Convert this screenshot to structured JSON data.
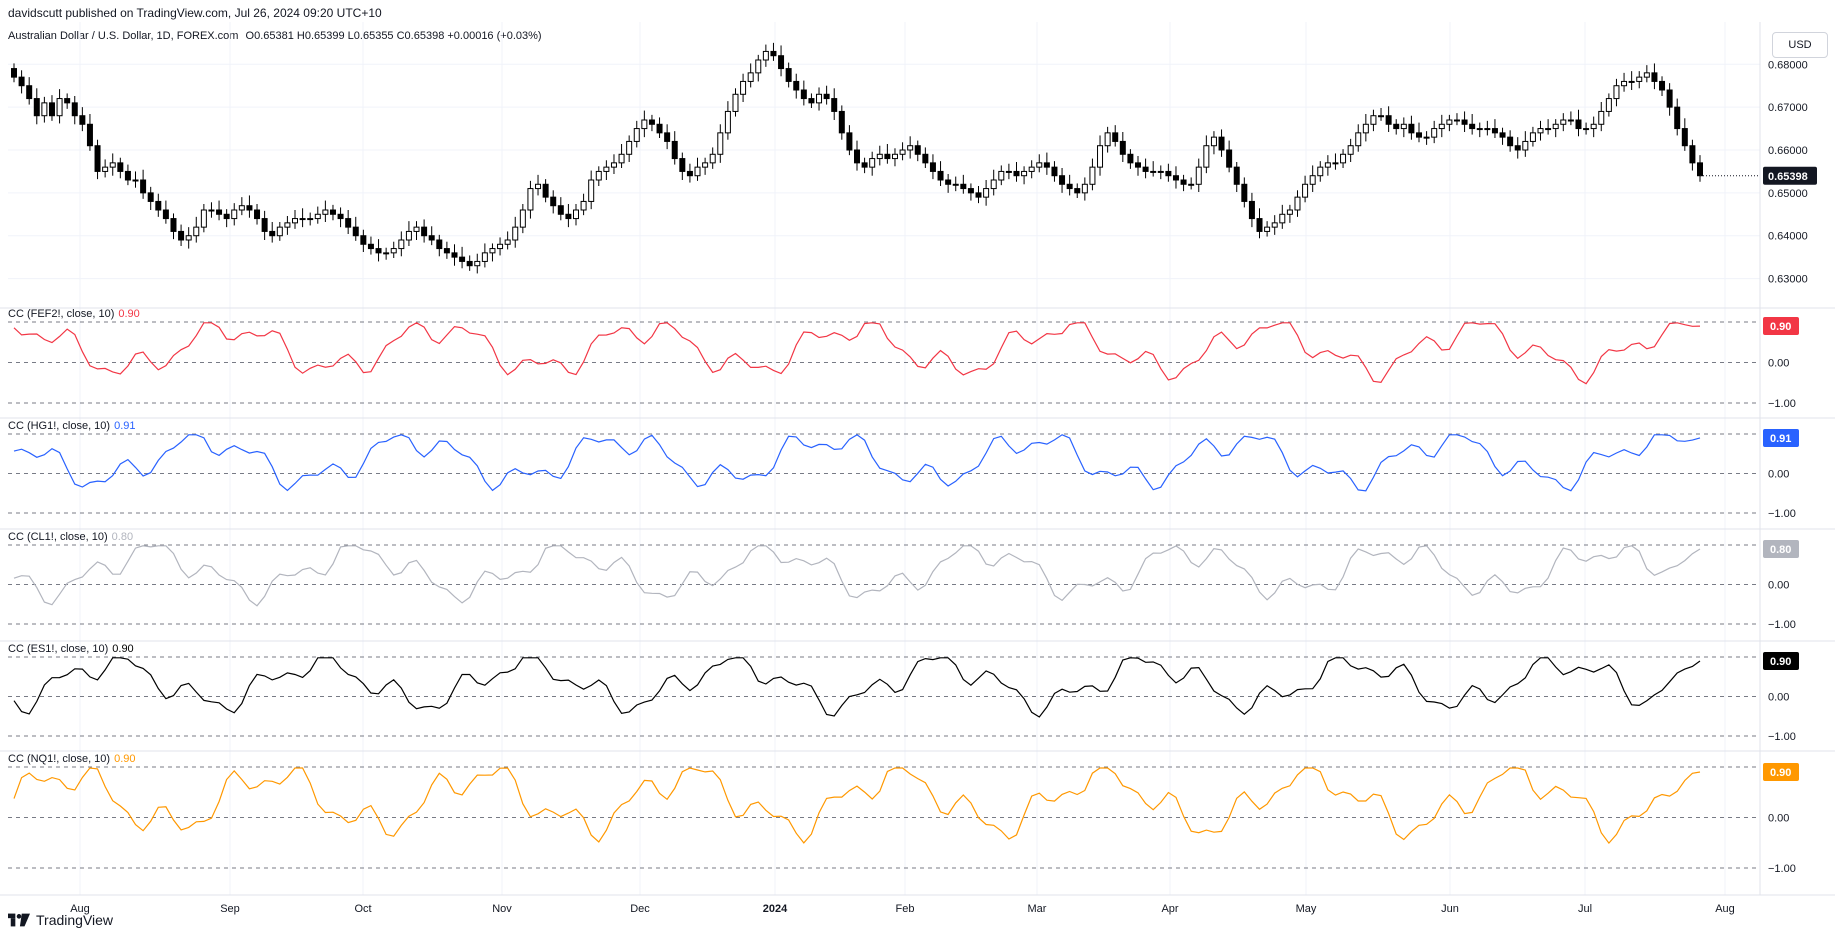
{
  "header": {
    "published_by": "davidscutt published on TradingView.com, Jul 26, 2024 09:20 UTC+10"
  },
  "main_pane": {
    "symbol": "Australian Dollar / U.S. Dollar, 1D, FOREX.com",
    "ohlc": "O0.65381 H0.65399 L0.65355 C0.65398 +0.00016 (+0.03%)",
    "currency": "USD",
    "last_price": "0.65398",
    "price_ticks": [
      "0.68000",
      "0.67000",
      "0.66000",
      "0.65000",
      "0.64000",
      "0.63000"
    ]
  },
  "indicators": [
    {
      "label": "CC (FEF2!, close, 10)",
      "value": "0.90",
      "tag": "0.90",
      "color": "#f23645",
      "ticks": [
        "0.00",
        "−1.00"
      ]
    },
    {
      "label": "CC (HG1!, close, 10)",
      "value": "0.91",
      "tag": "0.91",
      "color": "#2962ff",
      "ticks": [
        "0.00",
        "−1.00"
      ]
    },
    {
      "label": "CC (CL1!, close, 10)",
      "value": "0.80",
      "tag": "0.80",
      "color": "#b2b5be",
      "ticks": [
        "1.00",
        "0.00",
        "−1.00"
      ]
    },
    {
      "label": "CC (ES1!, close, 10)",
      "value": "0.90",
      "tag": "0.90",
      "color": "#000000",
      "ticks": [
        "0.00",
        "−1.00"
      ]
    },
    {
      "label": "CC (NQ1!, close, 10)",
      "value": "0.90",
      "tag": "0.90",
      "color": "#ff9800",
      "ticks": [
        "0.00",
        "−1.00"
      ]
    }
  ],
  "time_axis": [
    "Aug",
    "Sep",
    "Oct",
    "Nov",
    "Dec",
    "2024",
    "Feb",
    "Mar",
    "Apr",
    "May",
    "Jun",
    "Jul",
    "Aug"
  ],
  "footer": {
    "brand": "TradingView"
  },
  "chart_data": {
    "type": "line",
    "series": [
      {
        "name": "AUD/USD close",
        "values": [
          0.677,
          0.675,
          0.672,
          0.668,
          0.671,
          0.668,
          0.672,
          0.671,
          0.668,
          0.666,
          0.661,
          0.655,
          0.656,
          0.657,
          0.655,
          0.653,
          0.653,
          0.65,
          0.648,
          0.646,
          0.644,
          0.641,
          0.639,
          0.64,
          0.642,
          0.646,
          0.646,
          0.645,
          0.644,
          0.646,
          0.647,
          0.646,
          0.644,
          0.641,
          0.64,
          0.642,
          0.643,
          0.644,
          0.644,
          0.644,
          0.645,
          0.646,
          0.645,
          0.644,
          0.642,
          0.64,
          0.638,
          0.637,
          0.636,
          0.636,
          0.637,
          0.639,
          0.641,
          0.642,
          0.64,
          0.639,
          0.637,
          0.636,
          0.635,
          0.634,
          0.633,
          0.634,
          0.636,
          0.637,
          0.638,
          0.639,
          0.642,
          0.646,
          0.651,
          0.652,
          0.649,
          0.647,
          0.645,
          0.644,
          0.646,
          0.648,
          0.653,
          0.655,
          0.656,
          0.657,
          0.659,
          0.662,
          0.665,
          0.667,
          0.666,
          0.664,
          0.662,
          0.658,
          0.655,
          0.654,
          0.656,
          0.657,
          0.659,
          0.664,
          0.669,
          0.673,
          0.676,
          0.678,
          0.681,
          0.683,
          0.682,
          0.679,
          0.676,
          0.674,
          0.672,
          0.671,
          0.673,
          0.672,
          0.669,
          0.664,
          0.66,
          0.657,
          0.656,
          0.658,
          0.659,
          0.658,
          0.659,
          0.66,
          0.661,
          0.659,
          0.657,
          0.655,
          0.653,
          0.652,
          0.652,
          0.651,
          0.65,
          0.649,
          0.651,
          0.653,
          0.655,
          0.655,
          0.654,
          0.655,
          0.656,
          0.657,
          0.656,
          0.654,
          0.652,
          0.651,
          0.65,
          0.652,
          0.656,
          0.661,
          0.664,
          0.662,
          0.659,
          0.657,
          0.656,
          0.655,
          0.655,
          0.655,
          0.654,
          0.653,
          0.652,
          0.652,
          0.656,
          0.661,
          0.663,
          0.66,
          0.656,
          0.652,
          0.648,
          0.644,
          0.641,
          0.642,
          0.643,
          0.645,
          0.646,
          0.649,
          0.652,
          0.654,
          0.656,
          0.657,
          0.657,
          0.659,
          0.661,
          0.664,
          0.666,
          0.668,
          0.668,
          0.666,
          0.665,
          0.666,
          0.664,
          0.663,
          0.663,
          0.665,
          0.666,
          0.667,
          0.667,
          0.666,
          0.665,
          0.665,
          0.665,
          0.664,
          0.663,
          0.661,
          0.66,
          0.662,
          0.664,
          0.665,
          0.665,
          0.666,
          0.667,
          0.667,
          0.665,
          0.665,
          0.666,
          0.669,
          0.672,
          0.675,
          0.676,
          0.676,
          0.677,
          0.678,
          0.676,
          0.674,
          0.67,
          0.665,
          0.661,
          0.657,
          0.654
        ]
      }
    ]
  }
}
